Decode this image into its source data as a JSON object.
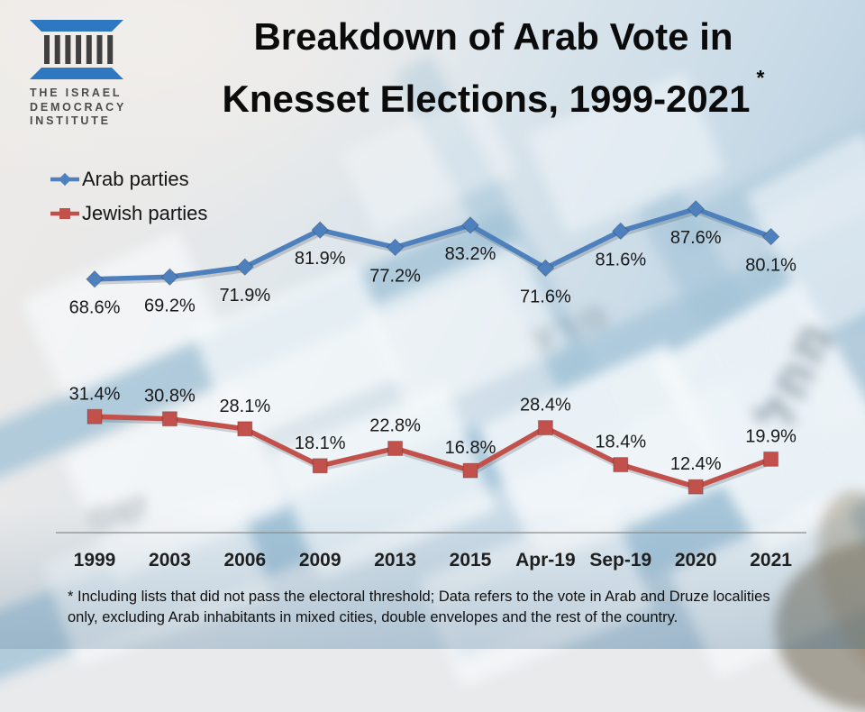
{
  "logo": {
    "line1": "THE ISRAEL",
    "line2": "DEMOCRACY",
    "line3": "INSTITUTE",
    "color": "#2d78c0",
    "bar_color": "#3f3f3f"
  },
  "title": {
    "line1": "Breakdown of Arab Vote in",
    "line2": "Knesset Elections, 1999-2021",
    "asterisk": "*"
  },
  "legend": [
    {
      "label": "Arab parties",
      "color": "#4d80bd",
      "marker": "diamond"
    },
    {
      "label": "Jewish parties",
      "color": "#c2504b",
      "marker": "square"
    }
  ],
  "footnote": {
    "line1": "* Including lists that did not pass the electoral threshold; Data refers to the vote in Arab and Druze localities",
    "line2": "only, excluding Arab inhabitants in mixed cities, double envelopes and the rest of the country."
  },
  "background": {
    "ballot_labels": [
      "מחל",
      "מרצ",
      "שס"
    ]
  },
  "chart_data": {
    "type": "line",
    "title": "Breakdown of Arab Vote in Knesset Elections, 1999-2021 *",
    "categories": [
      "1999",
      "2003",
      "2006",
      "2009",
      "2013",
      "2015",
      "Apr-19",
      "Sep-19",
      "2020",
      "2021"
    ],
    "series": [
      {
        "name": "Arab parties",
        "color": "#4d80bd",
        "marker": "diamond",
        "label_position": "below",
        "values": [
          68.6,
          69.2,
          71.9,
          81.9,
          77.2,
          83.2,
          71.6,
          81.6,
          87.6,
          80.1
        ]
      },
      {
        "name": "Jewish parties",
        "color": "#c2504b",
        "marker": "square",
        "label_position": "above",
        "values": [
          31.4,
          30.8,
          28.1,
          18.1,
          22.8,
          16.8,
          28.4,
          18.4,
          12.4,
          19.9
        ]
      }
    ],
    "unit": "%",
    "ylim": [
      0,
      100
    ],
    "grid": false,
    "legend_position": "top-left",
    "axis_color": "#8c8c8c",
    "label_color": "#191919"
  }
}
